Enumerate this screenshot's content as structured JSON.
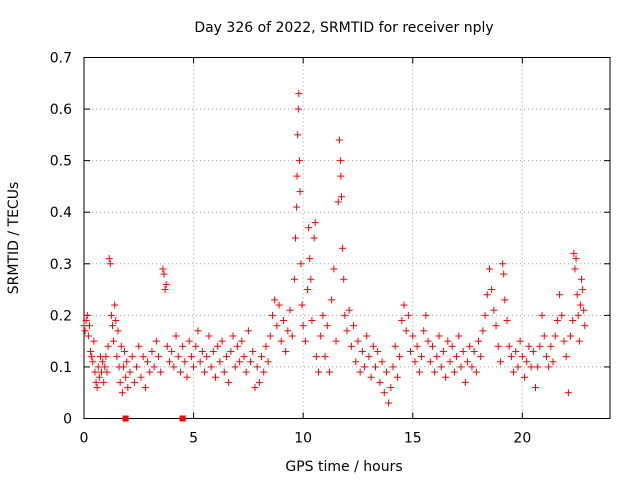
{
  "chart_data": {
    "type": "scatter",
    "title": "Day 326 of 2022, SRMTID for receiver nply",
    "xlabel": "GPS time / hours",
    "ylabel": "SRMTID / TECUs",
    "xlim": [
      0,
      24
    ],
    "ylim": [
      0,
      0.7
    ],
    "xticks": [
      0,
      5,
      10,
      15,
      20
    ],
    "xtick_labels": [
      "0",
      "5",
      "10",
      "15",
      "20"
    ],
    "yticks": [
      0,
      0.1,
      0.2,
      0.3,
      0.4,
      0.5,
      0.6,
      0.7
    ],
    "ytick_labels": [
      "0",
      "0.1",
      "0.2",
      "0.3",
      "0.4",
      "0.5",
      "0.6",
      "0.7"
    ],
    "grid": true,
    "marker": "plus",
    "marker_color": "#ff0000",
    "series": [
      {
        "name": "SRMTID",
        "points": [
          [
            0.0,
            0.18
          ],
          [
            0.05,
            0.17
          ],
          [
            0.1,
            0.19
          ],
          [
            0.15,
            0.2
          ],
          [
            0.2,
            0.16
          ],
          [
            0.25,
            0.18
          ],
          [
            0.3,
            0.13
          ],
          [
            0.35,
            0.12
          ],
          [
            0.4,
            0.11
          ],
          [
            0.45,
            0.15
          ],
          [
            0.5,
            0.09
          ],
          [
            0.55,
            0.07
          ],
          [
            0.6,
            0.06
          ],
          [
            0.65,
            0.1
          ],
          [
            0.7,
            0.08
          ],
          [
            0.75,
            0.12
          ],
          [
            0.8,
            0.09
          ],
          [
            0.85,
            0.11
          ],
          [
            0.9,
            0.07
          ],
          [
            0.95,
            0.1
          ],
          [
            1.0,
            0.12
          ],
          [
            1.05,
            0.09
          ],
          [
            1.1,
            0.14
          ],
          [
            1.15,
            0.31
          ],
          [
            1.2,
            0.3
          ],
          [
            1.25,
            0.2
          ],
          [
            1.3,
            0.18
          ],
          [
            1.35,
            0.15
          ],
          [
            1.4,
            0.22
          ],
          [
            1.45,
            0.19
          ],
          [
            1.5,
            0.12
          ],
          [
            1.55,
            0.17
          ],
          [
            1.6,
            0.1
          ],
          [
            1.65,
            0.07
          ],
          [
            1.7,
            0.14
          ],
          [
            1.75,
            0.05
          ],
          [
            1.8,
            0.1
          ],
          [
            1.85,
            0.13
          ],
          [
            1.9,
            0.08
          ],
          [
            1.95,
            0.11
          ],
          [
            2.0,
            0.06
          ],
          [
            2.1,
            0.09
          ],
          [
            2.2,
            0.12
          ],
          [
            2.3,
            0.07
          ],
          [
            2.4,
            0.1
          ],
          [
            2.5,
            0.14
          ],
          [
            2.6,
            0.08
          ],
          [
            2.7,
            0.12
          ],
          [
            2.8,
            0.06
          ],
          [
            2.9,
            0.11
          ],
          [
            3.0,
            0.09
          ],
          [
            3.1,
            0.13
          ],
          [
            3.2,
            0.1
          ],
          [
            3.3,
            0.15
          ],
          [
            3.4,
            0.12
          ],
          [
            3.5,
            0.09
          ],
          [
            3.6,
            0.29
          ],
          [
            3.65,
            0.28
          ],
          [
            3.7,
            0.25
          ],
          [
            3.75,
            0.26
          ],
          [
            3.8,
            0.14
          ],
          [
            3.9,
            0.11
          ],
          [
            4.0,
            0.13
          ],
          [
            4.1,
            0.1
          ],
          [
            4.2,
            0.16
          ],
          [
            4.3,
            0.12
          ],
          [
            4.4,
            0.09
          ],
          [
            4.5,
            0.14
          ],
          [
            4.6,
            0.11
          ],
          [
            4.7,
            0.08
          ],
          [
            4.8,
            0.15
          ],
          [
            4.9,
            0.12
          ],
          [
            5.0,
            0.1
          ],
          [
            5.1,
            0.14
          ],
          [
            5.2,
            0.17
          ],
          [
            5.3,
            0.11
          ],
          [
            5.4,
            0.13
          ],
          [
            5.5,
            0.09
          ],
          [
            5.6,
            0.12
          ],
          [
            5.7,
            0.16
          ],
          [
            5.8,
            0.1
          ],
          [
            5.9,
            0.13
          ],
          [
            6.0,
            0.08
          ],
          [
            6.1,
            0.14
          ],
          [
            6.2,
            0.11
          ],
          [
            6.3,
            0.15
          ],
          [
            6.4,
            0.09
          ],
          [
            6.5,
            0.12
          ],
          [
            6.6,
            0.07
          ],
          [
            6.7,
            0.13
          ],
          [
            6.8,
            0.16
          ],
          [
            6.9,
            0.1
          ],
          [
            7.0,
            0.14
          ],
          [
            7.1,
            0.11
          ],
          [
            7.2,
            0.15
          ],
          [
            7.3,
            0.12
          ],
          [
            7.4,
            0.09
          ],
          [
            7.5,
            0.17
          ],
          [
            7.6,
            0.11
          ],
          [
            7.7,
            0.13
          ],
          [
            7.8,
            0.06
          ],
          [
            7.9,
            0.1
          ],
          [
            8.0,
            0.07
          ],
          [
            8.1,
            0.12
          ],
          [
            8.2,
            0.09
          ],
          [
            8.3,
            0.14
          ],
          [
            8.4,
            0.11
          ],
          [
            8.5,
            0.16
          ],
          [
            8.6,
            0.2
          ],
          [
            8.7,
            0.23
          ],
          [
            8.8,
            0.18
          ],
          [
            8.9,
            0.22
          ],
          [
            9.0,
            0.15
          ],
          [
            9.1,
            0.19
          ],
          [
            9.2,
            0.13
          ],
          [
            9.3,
            0.17
          ],
          [
            9.4,
            0.21
          ],
          [
            9.5,
            0.16
          ],
          [
            9.6,
            0.27
          ],
          [
            9.65,
            0.35
          ],
          [
            9.7,
            0.41
          ],
          [
            9.72,
            0.47
          ],
          [
            9.75,
            0.55
          ],
          [
            9.78,
            0.6
          ],
          [
            9.8,
            0.63
          ],
          [
            9.83,
            0.5
          ],
          [
            9.86,
            0.44
          ],
          [
            9.9,
            0.3
          ],
          [
            9.95,
            0.22
          ],
          [
            10.0,
            0.18
          ],
          [
            10.1,
            0.15
          ],
          [
            10.2,
            0.25
          ],
          [
            10.25,
            0.37
          ],
          [
            10.3,
            0.31
          ],
          [
            10.35,
            0.27
          ],
          [
            10.4,
            0.19
          ],
          [
            10.5,
            0.35
          ],
          [
            10.55,
            0.38
          ],
          [
            10.6,
            0.12
          ],
          [
            10.7,
            0.09
          ],
          [
            10.8,
            0.16
          ],
          [
            10.9,
            0.2
          ],
          [
            11.0,
            0.12
          ],
          [
            11.1,
            0.18
          ],
          [
            11.2,
            0.09
          ],
          [
            11.3,
            0.23
          ],
          [
            11.4,
            0.29
          ],
          [
            11.5,
            0.15
          ],
          [
            11.6,
            0.42
          ],
          [
            11.65,
            0.54
          ],
          [
            11.7,
            0.5
          ],
          [
            11.72,
            0.47
          ],
          [
            11.75,
            0.43
          ],
          [
            11.8,
            0.33
          ],
          [
            11.85,
            0.27
          ],
          [
            11.9,
            0.2
          ],
          [
            12.0,
            0.17
          ],
          [
            12.1,
            0.21
          ],
          [
            12.2,
            0.14
          ],
          [
            12.3,
            0.18
          ],
          [
            12.4,
            0.11
          ],
          [
            12.5,
            0.15
          ],
          [
            12.6,
            0.09
          ],
          [
            12.7,
            0.13
          ],
          [
            12.8,
            0.1
          ],
          [
            12.9,
            0.16
          ],
          [
            13.0,
            0.12
          ],
          [
            13.1,
            0.08
          ],
          [
            13.2,
            0.14
          ],
          [
            13.3,
            0.1
          ],
          [
            13.4,
            0.13
          ],
          [
            13.5,
            0.07
          ],
          [
            13.6,
            0.11
          ],
          [
            13.7,
            0.05
          ],
          [
            13.8,
            0.09
          ],
          [
            13.9,
            0.03
          ],
          [
            14.0,
            0.06
          ],
          [
            14.1,
            0.1
          ],
          [
            14.2,
            0.14
          ],
          [
            14.3,
            0.08
          ],
          [
            14.4,
            0.12
          ],
          [
            14.5,
            0.19
          ],
          [
            14.6,
            0.22
          ],
          [
            14.7,
            0.17
          ],
          [
            14.8,
            0.2
          ],
          [
            14.9,
            0.13
          ],
          [
            15.0,
            0.16
          ],
          [
            15.1,
            0.11
          ],
          [
            15.2,
            0.14
          ],
          [
            15.3,
            0.09
          ],
          [
            15.4,
            0.12
          ],
          [
            15.5,
            0.17
          ],
          [
            15.6,
            0.2
          ],
          [
            15.7,
            0.15
          ],
          [
            15.8,
            0.11
          ],
          [
            15.9,
            0.14
          ],
          [
            16.0,
            0.09
          ],
          [
            16.1,
            0.12
          ],
          [
            16.2,
            0.16
          ],
          [
            16.3,
            0.1
          ],
          [
            16.4,
            0.13
          ],
          [
            16.5,
            0.08
          ],
          [
            16.6,
            0.15
          ],
          [
            16.7,
            0.11
          ],
          [
            16.8,
            0.14
          ],
          [
            16.9,
            0.09
          ],
          [
            17.0,
            0.12
          ],
          [
            17.1,
            0.16
          ],
          [
            17.2,
            0.1
          ],
          [
            17.3,
            0.13
          ],
          [
            17.4,
            0.07
          ],
          [
            17.5,
            0.11
          ],
          [
            17.6,
            0.14
          ],
          [
            17.7,
            0.1
          ],
          [
            17.8,
            0.13
          ],
          [
            17.9,
            0.09
          ],
          [
            18.0,
            0.15
          ],
          [
            18.1,
            0.12
          ],
          [
            18.2,
            0.17
          ],
          [
            18.3,
            0.2
          ],
          [
            18.4,
            0.24
          ],
          [
            18.5,
            0.29
          ],
          [
            18.6,
            0.25
          ],
          [
            18.7,
            0.21
          ],
          [
            18.8,
            0.18
          ],
          [
            18.9,
            0.14
          ],
          [
            19.0,
            0.11
          ],
          [
            19.1,
            0.3
          ],
          [
            19.15,
            0.28
          ],
          [
            19.2,
            0.23
          ],
          [
            19.3,
            0.19
          ],
          [
            19.4,
            0.14
          ],
          [
            19.5,
            0.12
          ],
          [
            19.6,
            0.09
          ],
          [
            19.7,
            0.13
          ],
          [
            19.8,
            0.1
          ],
          [
            19.9,
            0.15
          ],
          [
            20.0,
            0.12
          ],
          [
            20.1,
            0.08
          ],
          [
            20.2,
            0.11
          ],
          [
            20.3,
            0.14
          ],
          [
            20.4,
            0.1
          ],
          [
            20.5,
            0.13
          ],
          [
            20.6,
            0.06
          ],
          [
            20.7,
            0.1
          ],
          [
            20.8,
            0.14
          ],
          [
            20.9,
            0.2
          ],
          [
            21.0,
            0.16
          ],
          [
            21.1,
            0.12
          ],
          [
            21.2,
            0.1
          ],
          [
            21.3,
            0.14
          ],
          [
            21.4,
            0.11
          ],
          [
            21.5,
            0.16
          ],
          [
            21.6,
            0.19
          ],
          [
            21.7,
            0.24
          ],
          [
            21.8,
            0.2
          ],
          [
            21.9,
            0.15
          ],
          [
            22.0,
            0.12
          ],
          [
            22.1,
            0.05
          ],
          [
            22.2,
            0.16
          ],
          [
            22.3,
            0.19
          ],
          [
            22.35,
            0.32
          ],
          [
            22.4,
            0.29
          ],
          [
            22.45,
            0.31
          ],
          [
            22.5,
            0.24
          ],
          [
            22.55,
            0.2
          ],
          [
            22.6,
            0.15
          ],
          [
            22.65,
            0.22
          ],
          [
            22.7,
            0.27
          ],
          [
            22.75,
            0.25
          ],
          [
            22.8,
            0.21
          ],
          [
            22.85,
            0.18
          ],
          [
            1.9,
            0.0
          ],
          [
            4.5,
            0.0
          ]
        ]
      }
    ]
  }
}
